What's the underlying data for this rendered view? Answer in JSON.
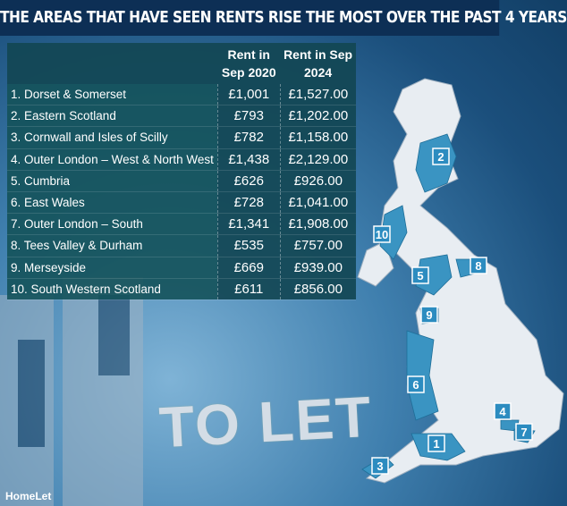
{
  "header": {
    "title": "THE AREAS THAT HAVE SEEN RENTS RISE THE MOST OVER THE PAST 4 YEARS"
  },
  "table": {
    "columns": [
      "",
      "Rent in Sep 2020",
      "Rent in Sep 2024"
    ],
    "rows": [
      [
        "1. Dorset & Somerset",
        "£1,001",
        "£1,527.00"
      ],
      [
        "2. Eastern Scotland",
        "£793",
        "£1,202.00"
      ],
      [
        "3. Cornwall and Isles of Scilly",
        "£782",
        "£1,158.00"
      ],
      [
        "4. Outer London – West & North West",
        "£1,438",
        "£2,129.00"
      ],
      [
        "5. Cumbria",
        "£626",
        "£926.00"
      ],
      [
        "6. East Wales",
        "£728",
        "£1,041.00"
      ],
      [
        "7. Outer London – South",
        "£1,341",
        "£1,908.00"
      ],
      [
        "8. Tees Valley & Durham",
        "£535",
        "£757.00"
      ],
      [
        "9. Merseyside",
        "£669",
        "£939.00"
      ],
      [
        "10. South Western Scotland",
        "£611",
        "£856.00"
      ]
    ]
  },
  "map": {
    "markers": [
      {
        "label": "1"
      },
      {
        "label": "2"
      },
      {
        "label": "3"
      },
      {
        "label": "4"
      },
      {
        "label": "5"
      },
      {
        "label": "6"
      },
      {
        "label": "7"
      },
      {
        "label": "8"
      },
      {
        "label": "9"
      },
      {
        "label": "10"
      }
    ]
  },
  "sign": {
    "text": "TO LET"
  },
  "credit": {
    "text": "HomeLet"
  }
}
